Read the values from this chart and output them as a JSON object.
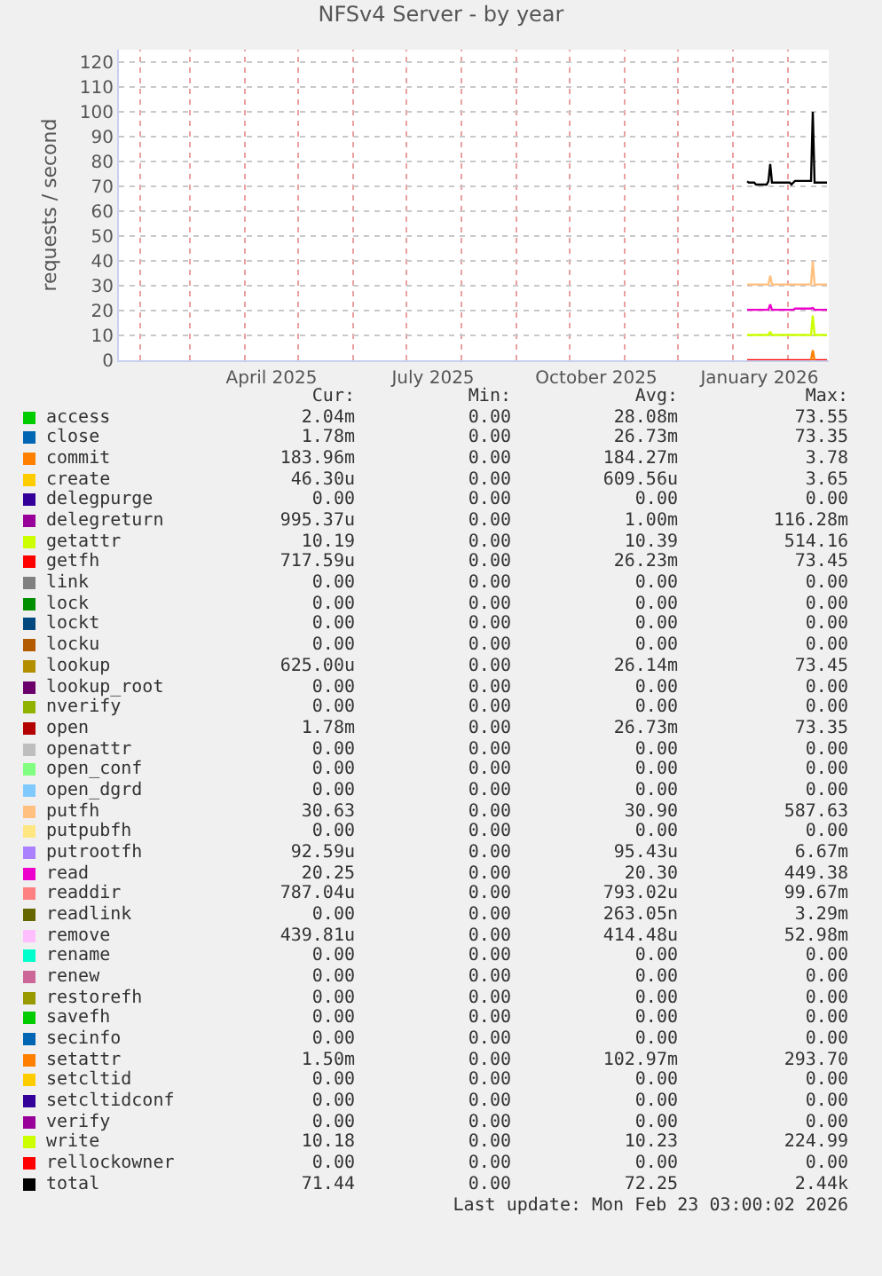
{
  "chart_data": {
    "type": "line",
    "title": "NFSv4 Server - by year",
    "ylabel": "requests / second",
    "x": [
      "2026-01-09",
      "2026-01-10",
      "2026-01-13",
      "2026-01-14",
      "2026-01-20",
      "2026-01-21",
      "2026-01-22",
      "2026-01-23",
      "2026-02-02",
      "2026-02-03",
      "2026-02-04",
      "2026-02-05",
      "2026-02-14",
      "2026-02-15",
      "2026-02-16",
      "2026-02-23"
    ],
    "xlim": [
      "2025-01-20",
      "2026-02-24"
    ],
    "xticks": [
      {
        "value": "2025-02-01",
        "label": null
      },
      {
        "value": "2025-03-01",
        "label": null
      },
      {
        "value": "2025-04-01",
        "label": null
      },
      {
        "value": "2025-04-16",
        "label": "April 2025"
      },
      {
        "value": "2025-05-01",
        "label": null
      },
      {
        "value": "2025-06-01",
        "label": null
      },
      {
        "value": "2025-07-01",
        "label": null
      },
      {
        "value": "2025-07-16",
        "label": "July 2025"
      },
      {
        "value": "2025-08-01",
        "label": null
      },
      {
        "value": "2025-09-01",
        "label": null
      },
      {
        "value": "2025-10-01",
        "label": null
      },
      {
        "value": "2025-10-16",
        "label": "October 2025"
      },
      {
        "value": "2025-11-01",
        "label": null
      },
      {
        "value": "2025-12-01",
        "label": null
      },
      {
        "value": "2026-01-01",
        "label": null
      },
      {
        "value": "2026-01-16",
        "label": "January 2026"
      },
      {
        "value": "2026-02-01",
        "label": null
      }
    ],
    "ylim": [
      0,
      125
    ],
    "yticks": [
      0,
      10,
      20,
      30,
      40,
      50,
      60,
      70,
      80,
      90,
      100,
      110,
      120
    ],
    "grid": true,
    "legend": "bottom",
    "marker": "none",
    "line_style": "solid",
    "series": [
      {
        "name": "access",
        "color": "#00cc00",
        "values": [
          null,
          null,
          null,
          null,
          null,
          null,
          null,
          null,
          null,
          null,
          null,
          null,
          null,
          null,
          null,
          null
        ]
      },
      {
        "name": "close",
        "color": "#0066b3",
        "values": [
          null,
          null,
          null,
          null,
          null,
          null,
          null,
          null,
          null,
          null,
          null,
          null,
          null,
          null,
          null,
          null
        ]
      },
      {
        "name": "commit",
        "color": "#ff8000",
        "values": [
          null,
          null,
          null,
          null,
          null,
          null,
          null,
          null,
          null,
          null,
          null,
          null,
          null,
          null,
          null,
          null
        ]
      },
      {
        "name": "create",
        "color": "#ffcc00",
        "values": [
          null,
          null,
          null,
          null,
          null,
          null,
          null,
          null,
          null,
          null,
          null,
          null,
          null,
          null,
          null,
          null
        ]
      },
      {
        "name": "delegpurge",
        "color": "#330099",
        "values": [
          null,
          null,
          null,
          null,
          null,
          null,
          null,
          null,
          null,
          null,
          null,
          null,
          null,
          null,
          null,
          null
        ]
      },
      {
        "name": "delegreturn",
        "color": "#990099",
        "values": [
          null,
          null,
          null,
          null,
          null,
          null,
          null,
          null,
          null,
          null,
          null,
          null,
          null,
          null,
          null,
          null
        ]
      },
      {
        "name": "getattr",
        "color": "#ccff00",
        "values": [
          null,
          null,
          null,
          null,
          null,
          null,
          null,
          null,
          null,
          null,
          null,
          null,
          null,
          null,
          null,
          null
        ]
      },
      {
        "name": "getfh",
        "color": "#ff0000",
        "values": [
          null,
          null,
          null,
          null,
          null,
          null,
          null,
          null,
          null,
          null,
          null,
          null,
          null,
          null,
          null,
          null
        ]
      },
      {
        "name": "link",
        "color": "#808080",
        "values": [
          null,
          null,
          null,
          null,
          null,
          null,
          null,
          null,
          null,
          null,
          null,
          null,
          null,
          null,
          null,
          null
        ]
      },
      {
        "name": "lock",
        "color": "#008f00",
        "values": [
          null,
          null,
          null,
          null,
          null,
          null,
          null,
          null,
          null,
          null,
          null,
          null,
          null,
          null,
          null,
          null
        ]
      },
      {
        "name": "lockt",
        "color": "#00487d",
        "values": [
          null,
          null,
          null,
          null,
          null,
          null,
          null,
          null,
          null,
          null,
          null,
          null,
          null,
          null,
          null,
          null
        ]
      },
      {
        "name": "locku",
        "color": "#b35a00",
        "values": [
          null,
          null,
          null,
          null,
          null,
          null,
          null,
          null,
          null,
          null,
          null,
          null,
          null,
          null,
          null,
          null
        ]
      },
      {
        "name": "lookup",
        "color": "#b38f00",
        "values": [
          null,
          null,
          null,
          null,
          null,
          null,
          null,
          null,
          null,
          null,
          null,
          null,
          null,
          null,
          null,
          null
        ]
      },
      {
        "name": "lookup_root",
        "color": "#6b006b",
        "values": [
          null,
          null,
          null,
          null,
          null,
          null,
          null,
          null,
          null,
          null,
          null,
          null,
          null,
          null,
          null,
          null
        ]
      },
      {
        "name": "nverify",
        "color": "#8fb300",
        "values": [
          null,
          null,
          null,
          null,
          null,
          null,
          null,
          null,
          null,
          null,
          null,
          null,
          null,
          null,
          null,
          null
        ]
      },
      {
        "name": "open",
        "color": "#b30000",
        "values": [
          null,
          null,
          null,
          null,
          null,
          null,
          null,
          null,
          null,
          null,
          null,
          null,
          null,
          null,
          null,
          null
        ]
      },
      {
        "name": "openattr",
        "color": "#bebebe",
        "values": [
          null,
          null,
          null,
          null,
          null,
          null,
          null,
          null,
          null,
          null,
          null,
          null,
          null,
          null,
          null,
          null
        ]
      },
      {
        "name": "open_conf",
        "color": "#80ff80",
        "values": [
          null,
          null,
          null,
          null,
          null,
          null,
          null,
          null,
          null,
          null,
          null,
          null,
          null,
          null,
          null,
          null
        ]
      },
      {
        "name": "open_dgrd",
        "color": "#80c9ff",
        "values": [
          null,
          null,
          null,
          null,
          null,
          null,
          null,
          null,
          null,
          null,
          null,
          null,
          null,
          null,
          null,
          null
        ]
      },
      {
        "name": "putfh",
        "color": "#ffc080",
        "values": [
          30.5,
          30.5,
          30.5,
          30.5,
          30.5,
          30.5,
          34,
          30.5,
          30.5,
          30.5,
          30.5,
          30.5,
          30.5,
          40,
          30.5,
          30.5
        ]
      },
      {
        "name": "putpubfh",
        "color": "#ffe680",
        "values": [
          null,
          null,
          null,
          null,
          null,
          null,
          null,
          null,
          null,
          null,
          null,
          null,
          null,
          null,
          null,
          null
        ]
      },
      {
        "name": "putrootfh",
        "color": "#aa80ff",
        "values": [
          null,
          null,
          null,
          null,
          null,
          null,
          null,
          null,
          null,
          null,
          null,
          null,
          null,
          null,
          null,
          null
        ]
      },
      {
        "name": "read",
        "color": "#ee00cc",
        "values": [
          20.3,
          20.3,
          20.3,
          20.3,
          20.3,
          20.3,
          22.5,
          20.3,
          20.3,
          20.3,
          20.3,
          20.8,
          20.8,
          21,
          20.3,
          20.3
        ]
      },
      {
        "name": "readdir",
        "color": "#ff8080",
        "values": [
          null,
          null,
          null,
          null,
          null,
          null,
          null,
          null,
          null,
          null,
          null,
          null,
          null,
          null,
          null,
          null
        ]
      },
      {
        "name": "readlink",
        "color": "#666600",
        "values": [
          null,
          null,
          null,
          null,
          null,
          null,
          null,
          null,
          null,
          null,
          null,
          null,
          null,
          null,
          null,
          null
        ]
      },
      {
        "name": "remove",
        "color": "#ffbfff",
        "values": [
          null,
          null,
          null,
          null,
          null,
          null,
          null,
          null,
          null,
          null,
          null,
          null,
          null,
          null,
          null,
          null
        ]
      },
      {
        "name": "rename",
        "color": "#00ffcc",
        "values": [
          null,
          null,
          null,
          null,
          null,
          null,
          null,
          null,
          null,
          null,
          null,
          null,
          null,
          null,
          null,
          null
        ]
      },
      {
        "name": "renew",
        "color": "#cc6699",
        "values": [
          null,
          null,
          null,
          null,
          null,
          null,
          null,
          null,
          null,
          null,
          null,
          null,
          null,
          null,
          null,
          null
        ]
      },
      {
        "name": "restorefh",
        "color": "#999900",
        "values": [
          null,
          null,
          null,
          null,
          null,
          null,
          null,
          null,
          null,
          null,
          null,
          null,
          null,
          null,
          null,
          null
        ]
      },
      {
        "name": "savefh",
        "color": "#00cc00",
        "values": [
          null,
          null,
          null,
          null,
          null,
          null,
          null,
          null,
          null,
          null,
          null,
          null,
          null,
          null,
          null,
          null
        ]
      },
      {
        "name": "secinfo",
        "color": "#0066b3",
        "values": [
          null,
          null,
          null,
          null,
          null,
          null,
          null,
          null,
          null,
          null,
          null,
          null,
          null,
          null,
          null,
          null
        ]
      },
      {
        "name": "setattr",
        "color": "#ff8000",
        "values": [
          null,
          null,
          null,
          null,
          null,
          null,
          null,
          null,
          null,
          null,
          null,
          null,
          0,
          4,
          0,
          null
        ]
      },
      {
        "name": "setcltid",
        "color": "#ffcc00",
        "values": [
          null,
          null,
          null,
          null,
          null,
          null,
          null,
          null,
          null,
          null,
          null,
          null,
          null,
          null,
          null,
          null
        ]
      },
      {
        "name": "setcltidconf",
        "color": "#330099",
        "values": [
          null,
          null,
          null,
          null,
          null,
          null,
          null,
          null,
          null,
          null,
          null,
          null,
          null,
          null,
          null,
          null
        ]
      },
      {
        "name": "verify",
        "color": "#990099",
        "values": [
          null,
          null,
          null,
          null,
          null,
          null,
          null,
          null,
          null,
          null,
          null,
          null,
          null,
          null,
          null,
          null
        ]
      },
      {
        "name": "write",
        "color": "#ccff00",
        "values": [
          10.2,
          10.2,
          10.2,
          10.2,
          10.2,
          10.2,
          11.5,
          10.2,
          10.2,
          10.2,
          10.2,
          10.2,
          10.2,
          18,
          10.2,
          10.2
        ]
      },
      {
        "name": "rellockowner",
        "color": "#ff0000",
        "values": [
          0,
          0,
          0,
          0,
          0,
          0,
          0,
          0,
          0,
          0,
          0,
          0,
          0,
          0,
          0,
          0
        ]
      },
      {
        "name": "total",
        "color": "#000000",
        "values": [
          72,
          71.5,
          71.5,
          70.7,
          70.7,
          72,
          79,
          71.5,
          71.5,
          70.7,
          71.5,
          72.2,
          72.2,
          100,
          71.5,
          71.5
        ]
      }
    ],
    "annotations": [
      "Cur:",
      "Min:",
      "Avg:",
      "Max:",
      "2.04m",
      "0.00",
      "28.08m",
      "73.55",
      "1.78m",
      "0.00",
      "26.73m",
      "73.35",
      "183.96m",
      "0.00",
      "184.27m",
      "3.78",
      "46.30u",
      "0.00",
      "609.56u",
      "3.65",
      "0.00",
      "0.00",
      "0.00",
      "0.00",
      "995.37u",
      "0.00",
      "1.00m",
      "116.28m",
      "10.19",
      "0.00",
      "10.39",
      "514.16",
      "717.59u",
      "0.00",
      "26.23m",
      "73.45",
      "0.00",
      "0.00",
      "0.00",
      "0.00",
      "0.00",
      "0.00",
      "0.00",
      "0.00",
      "0.00",
      "0.00",
      "0.00",
      "0.00",
      "0.00",
      "0.00",
      "0.00",
      "0.00",
      "625.00u",
      "0.00",
      "26.14m",
      "73.45",
      "0.00",
      "0.00",
      "0.00",
      "0.00",
      "0.00",
      "0.00",
      "0.00",
      "0.00",
      "1.78m",
      "0.00",
      "26.73m",
      "73.35",
      "0.00",
      "0.00",
      "0.00",
      "0.00",
      "0.00",
      "0.00",
      "0.00",
      "0.00",
      "0.00",
      "0.00",
      "0.00",
      "0.00",
      "30.63",
      "0.00",
      "30.90",
      "587.63",
      "0.00",
      "0.00",
      "0.00",
      "0.00",
      "92.59u",
      "0.00",
      "95.43u",
      "6.67m",
      "20.25",
      "0.00",
      "20.30",
      "449.38",
      "787.04u",
      "0.00",
      "793.02u",
      "99.67m",
      "0.00",
      "0.00",
      "263.05n",
      "3.29m",
      "439.81u",
      "0.00",
      "414.48u",
      "52.98m",
      "0.00",
      "0.00",
      "0.00",
      "0.00",
      "0.00",
      "0.00",
      "0.00",
      "0.00",
      "0.00",
      "0.00",
      "0.00",
      "0.00",
      "0.00",
      "0.00",
      "0.00",
      "0.00",
      "0.00",
      "0.00",
      "0.00",
      "0.00",
      "1.50m",
      "0.00",
      "102.97m",
      "293.70",
      "0.00",
      "0.00",
      "0.00",
      "0.00",
      "0.00",
      "0.00",
      "0.00",
      "0.00",
      "0.00",
      "0.00",
      "0.00",
      "0.00",
      "10.18",
      "0.00",
      "10.23",
      "224.99",
      "0.00",
      "0.00",
      "0.00",
      "0.00",
      "71.44",
      "0.00",
      "72.25",
      "2.44k",
      "Last update: Mon Feb 23 03:00:02 2026"
    ]
  }
}
